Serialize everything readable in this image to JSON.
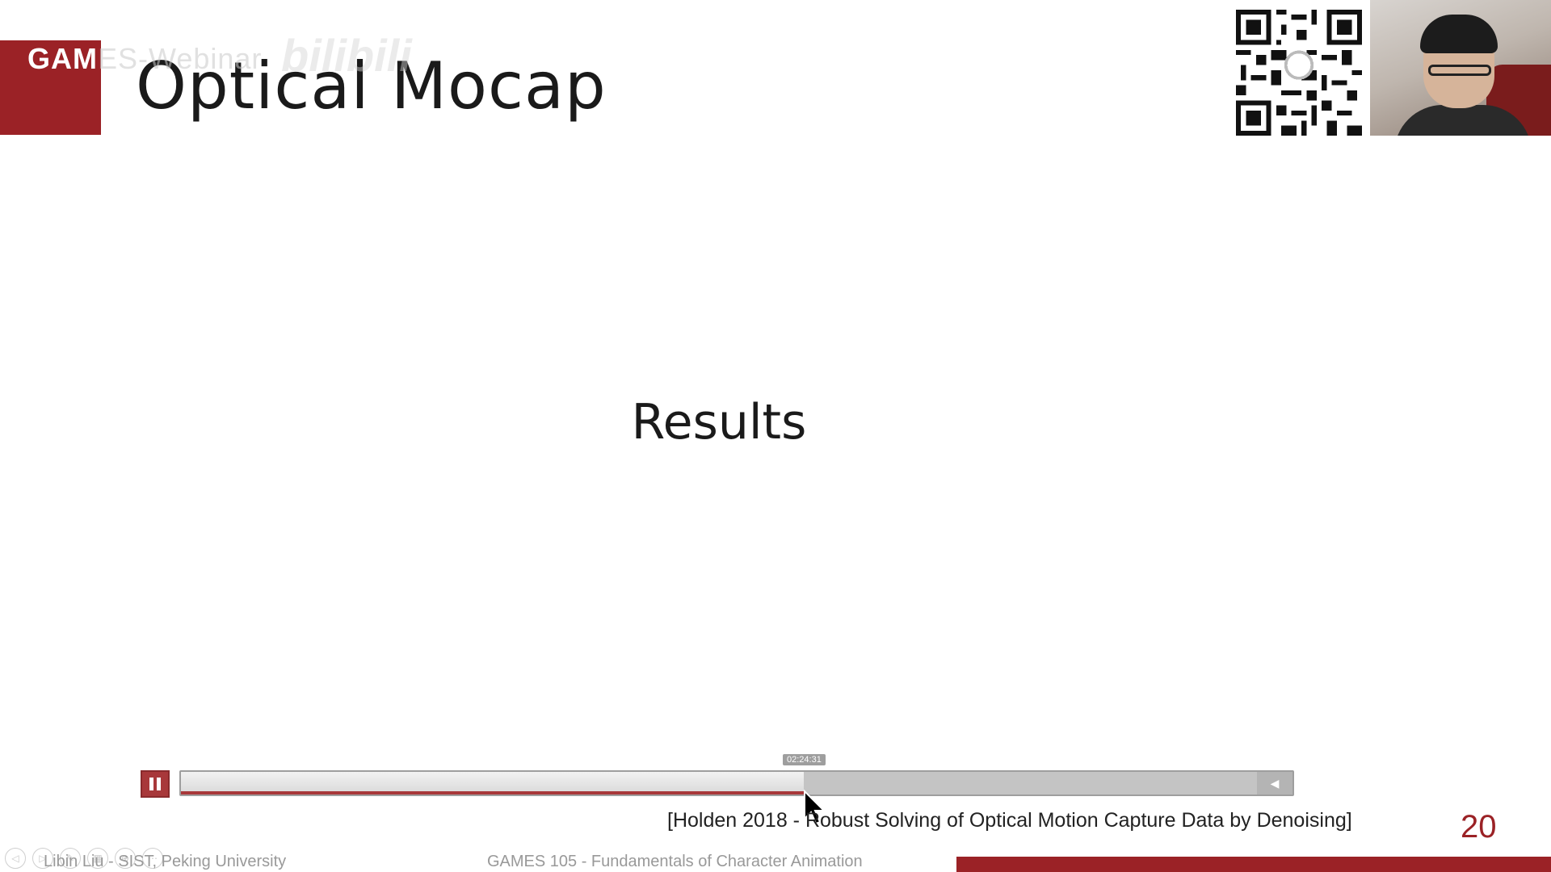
{
  "slide": {
    "title": "Optical Mocap",
    "center_text": "Results",
    "citation": "[Holden 2018 - Robust Solving of Optical Motion Capture Data by Denoising]",
    "page_number": "20",
    "footer_left": "Libin Liu - SIST, Peking University",
    "footer_center": "GAMES 105 - Fundamentals of Character Animation"
  },
  "watermark": {
    "games_bold": "GAM",
    "games_rest": "ES-Webinar",
    "bili": "bilibili"
  },
  "player": {
    "pause_label": "pause",
    "time_tooltip": "02:24:31",
    "progress": 0.56,
    "volume_icon": "volume-icon"
  },
  "icons": {
    "qr": "qr-code-icon",
    "webcam": "webcam-feed",
    "slideshow_controls": [
      "prev-icon",
      "next-icon",
      "pen-icon",
      "slides-icon",
      "zoom-icon",
      "more-icon"
    ]
  },
  "colors": {
    "accent": "#9b2226",
    "player_accent": "#a8383a",
    "track": "#c4c4c4"
  }
}
